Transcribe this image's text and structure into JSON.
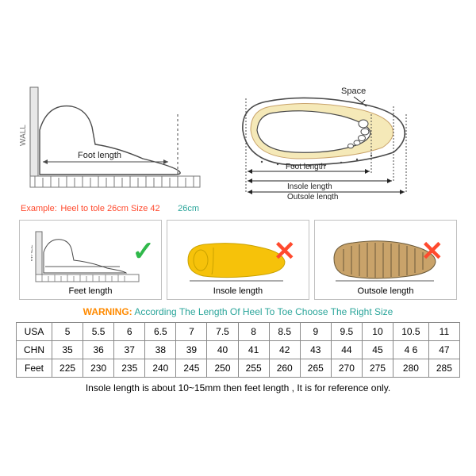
{
  "colors": {
    "text": "#222222",
    "border": "#8a8a8a",
    "box_border": "#c0c0c0",
    "red": "#ff4a2e",
    "green": "#2fb84a",
    "teal": "#2aa59a",
    "warning_label": "#ff8a00",
    "warning_text": "#2aa59a",
    "wall": "#6e6e6e",
    "ruler": "#7a7a7a",
    "foot_outline": "#4a4a4a",
    "insole_fill": "#f5e9b8",
    "insole_yellow": "#f6c20a",
    "outsole_fill": "#c9a36a",
    "outsole_tread": "#6b5a3a"
  },
  "top_left": {
    "wall_label": "WALL",
    "foot_label": "Foot length"
  },
  "top_right": {
    "space_label": "Space",
    "foot_label": "Foot length",
    "insole_label": "Insole length",
    "outsole_label": "Outsole length"
  },
  "example": {
    "prefix": "Example:",
    "text": "Heel to tole 26cm Size 42",
    "measure": "26cm"
  },
  "mid": {
    "feet_caption": "Feet length",
    "insole_caption": "Insole length",
    "outsole_caption": "Outsole length",
    "wall_label": "WALL"
  },
  "warning": {
    "label": "WARNING:",
    "text": "According The Length Of Heel To Toe Choose The Right Size"
  },
  "table": {
    "row_headers": [
      "USA",
      "CHN",
      "Feet"
    ],
    "rows": [
      [
        "5",
        "5.5",
        "6",
        "6.5",
        "7",
        "7.5",
        "8",
        "8.5",
        "9",
        "9.5",
        "10",
        "10.5",
        "11"
      ],
      [
        "35",
        "36",
        "37",
        "38",
        "39",
        "40",
        "41",
        "42",
        "43",
        "44",
        "45",
        "4 6",
        "47"
      ],
      [
        "225",
        "230",
        "235",
        "240",
        "245",
        "250",
        "255",
        "260",
        "265",
        "270",
        "275",
        "280",
        "285"
      ]
    ],
    "column_count": 13
  },
  "footnote": "Insole length is about 10~15mm then feet length , It is for reference only.",
  "typography": {
    "base_size_pt": 12,
    "small_size_pt": 11
  }
}
